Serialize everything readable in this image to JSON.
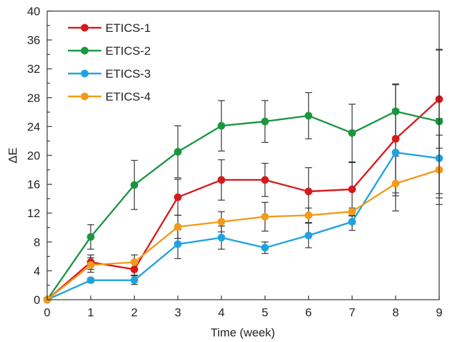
{
  "chart_data": {
    "type": "line",
    "title": "",
    "xlabel": "Time (week)",
    "ylabel": "ΔE",
    "xlim": [
      0,
      9
    ],
    "ylim": [
      0,
      40
    ],
    "x": [
      0,
      1,
      2,
      3,
      4,
      5,
      6,
      7,
      8,
      9
    ],
    "xticks": [
      "0",
      "1",
      "2",
      "3",
      "4",
      "5",
      "6",
      "7",
      "8",
      "9"
    ],
    "yticks": [
      "0",
      "4",
      "8",
      "12",
      "16",
      "20",
      "24",
      "28",
      "32",
      "36",
      "40"
    ],
    "grid": false,
    "legend_position": "top-left",
    "series": [
      {
        "name": "ETICS-1",
        "color": "#d7191c",
        "values": [
          0,
          5.2,
          4.2,
          14.2,
          16.6,
          16.6,
          15.0,
          15.3,
          22.3,
          27.8
        ],
        "errors": [
          0,
          1.0,
          0.8,
          2.5,
          2.8,
          2.3,
          3.3,
          3.7,
          7.5,
          6.8
        ]
      },
      {
        "name": "ETICS-2",
        "color": "#1a9641",
        "values": [
          0,
          8.7,
          15.9,
          20.5,
          24.1,
          24.7,
          25.5,
          23.1,
          26.1,
          24.7
        ],
        "errors": [
          0,
          1.7,
          3.4,
          3.6,
          3.5,
          2.9,
          3.2,
          4.0,
          3.8,
          10.0
        ]
      },
      {
        "name": "ETICS-3",
        "color": "#1fa3e0",
        "values": [
          0,
          2.7,
          2.7,
          7.7,
          8.6,
          7.2,
          8.9,
          10.8,
          20.4,
          19.6
        ],
        "errors": [
          0,
          0.3,
          0.6,
          2.0,
          1.6,
          0.8,
          1.7,
          1.2,
          6.0,
          5.5
        ]
      },
      {
        "name": "ETICS-4",
        "color": "#f29a1b",
        "values": [
          0,
          4.8,
          5.2,
          10.1,
          10.8,
          11.5,
          11.7,
          12.2,
          16.1,
          18.0
        ],
        "errors": [
          0,
          1.0,
          1.0,
          1.6,
          1.4,
          2.0,
          1.0,
          0.5,
          3.8,
          4.8
        ]
      }
    ]
  }
}
